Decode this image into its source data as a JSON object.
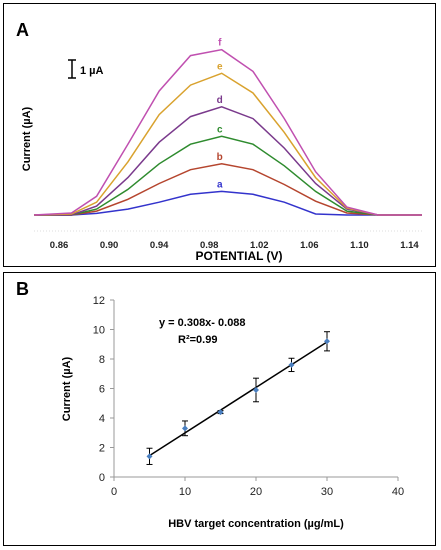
{
  "chart_data": [
    {
      "panel_label": "A",
      "type": "line",
      "xlabel": "POTENTIAL (V)",
      "ylabel": "Current (µA)",
      "scale_bar_label": "1 µA",
      "xlim": [
        0.84,
        1.15
      ],
      "x_ticks": [
        "0.86",
        "0.90",
        "0.94",
        "0.98",
        "1.02",
        "1.06",
        "1.10",
        "1.14"
      ],
      "x_tick_values": [
        0.86,
        0.9,
        0.94,
        0.98,
        1.02,
        1.06,
        1.1,
        1.14
      ],
      "x": [
        0.84,
        0.87,
        0.89,
        0.915,
        0.94,
        0.965,
        0.99,
        1.015,
        1.04,
        1.065,
        1.09,
        1.115,
        1.15
      ],
      "y_unit": "µA",
      "ylim": [
        0,
        9.3
      ],
      "series": [
        {
          "name": "a",
          "color": "#3333cc",
          "values": [
            0,
            0,
            0.08,
            0.3,
            0.65,
            1.05,
            1.2,
            1.05,
            0.65,
            0.05,
            0,
            0,
            0
          ]
        },
        {
          "name": "b",
          "color": "#b5452e",
          "values": [
            0,
            0,
            0.2,
            0.8,
            1.6,
            2.3,
            2.6,
            2.3,
            1.55,
            0.7,
            0.1,
            0,
            0
          ]
        },
        {
          "name": "c",
          "color": "#2e8b2e",
          "values": [
            0,
            0,
            0.3,
            1.3,
            2.6,
            3.6,
            4.0,
            3.6,
            2.5,
            1.2,
            0.2,
            0,
            0
          ]
        },
        {
          "name": "d",
          "color": "#7a3a8c",
          "values": [
            0,
            0,
            0.45,
            1.9,
            3.7,
            5.0,
            5.5,
            4.9,
            3.4,
            1.6,
            0.3,
            0,
            0
          ]
        },
        {
          "name": "e",
          "color": "#d9a22e",
          "values": [
            0,
            0.05,
            0.65,
            2.7,
            5.1,
            6.6,
            7.2,
            6.2,
            4.2,
            1.9,
            0.35,
            0,
            0
          ]
        },
        {
          "name": "f",
          "color": "#c050b0",
          "values": [
            0,
            0.1,
            0.95,
            3.6,
            6.3,
            8.1,
            8.4,
            7.3,
            4.9,
            2.2,
            0.4,
            0,
            0
          ]
        }
      ]
    },
    {
      "panel_label": "B",
      "type": "scatter",
      "xlabel": "HBV target concentration (µg/mL)",
      "ylabel": "Current (µA)",
      "xlim": [
        0,
        40
      ],
      "ylim": [
        0,
        12
      ],
      "x_ticks": [
        "0",
        "10",
        "20",
        "30",
        "40"
      ],
      "x_tick_values": [
        0,
        10,
        20,
        30,
        40
      ],
      "y_ticks": [
        "0",
        "2",
        "4",
        "6",
        "8",
        "10",
        "12"
      ],
      "y_tick_values": [
        0,
        2,
        4,
        6,
        8,
        10,
        12
      ],
      "equation": "y = 0.308x- 0.088",
      "r_squared": "R²=0.99",
      "fit": {
        "slope": 0.308,
        "intercept": -0.088
      },
      "x": [
        5,
        10,
        15,
        20,
        25,
        30
      ],
      "y": [
        1.4,
        3.3,
        4.4,
        5.9,
        7.6,
        9.2
      ],
      "error": [
        0.55,
        0.5,
        0.1,
        0.8,
        0.45,
        0.65
      ],
      "marker_color": "#4a7fc0"
    }
  ]
}
